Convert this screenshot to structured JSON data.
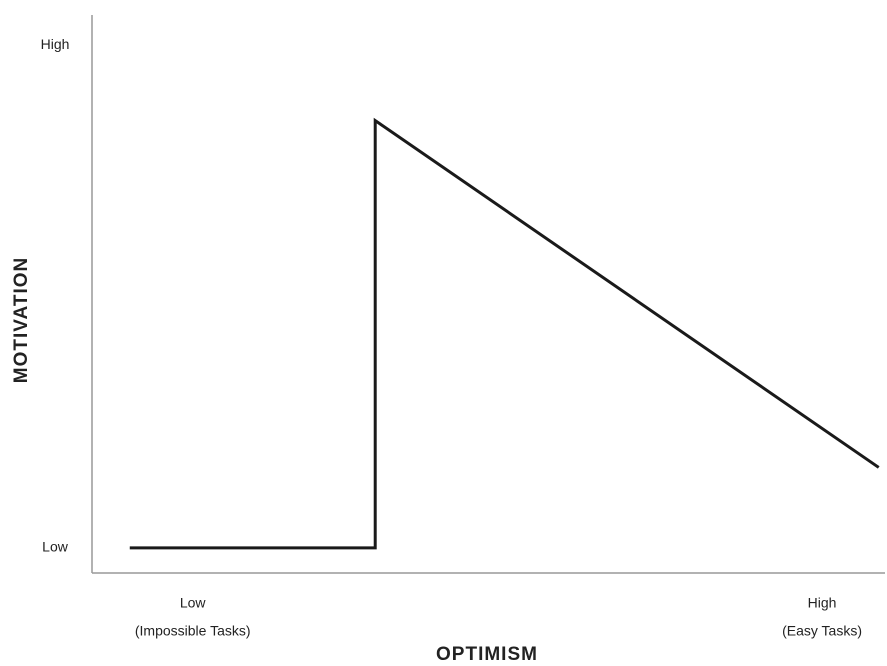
{
  "chart_data": {
    "type": "line",
    "x_label": "OPTIMISM",
    "y_label": "MOTIVATION",
    "x": [
      -10,
      29,
      29,
      109
    ],
    "series": [
      {
        "color": "#1a1a1a",
        "values": [
          0,
          0,
          85,
          16
        ]
      }
    ],
    "xlim": [
      -16,
      110
    ],
    "xticks": [
      {
        "value": 0,
        "label": [
          "Low",
          "(Impossible Tasks)"
        ]
      },
      {
        "value": 100,
        "label": [
          "High",
          "(Easy Tasks)"
        ]
      }
    ],
    "ylim": [
      -5,
      106
    ],
    "yticks": [
      {
        "value": 0,
        "label": "Low"
      },
      {
        "value": 100,
        "label": "High"
      }
    ],
    "grid": false
  }
}
